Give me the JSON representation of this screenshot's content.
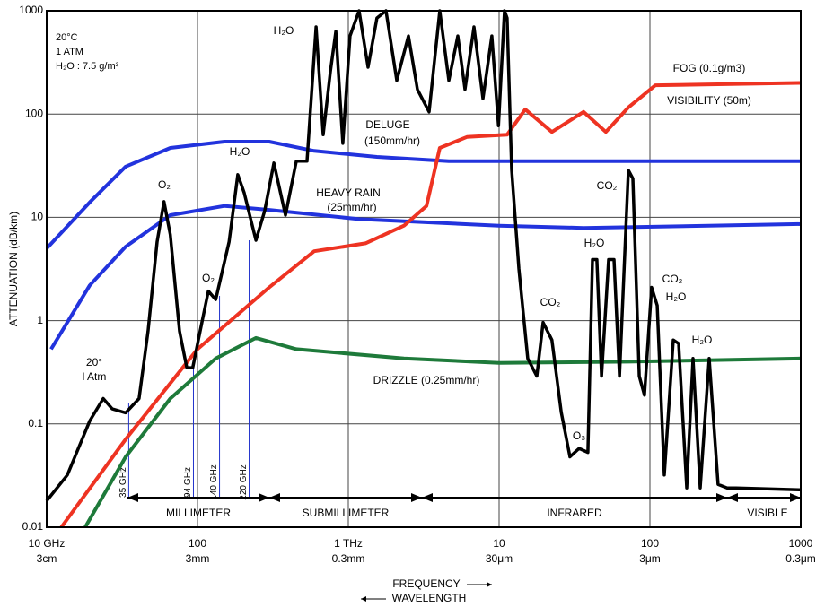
{
  "chart_data": {
    "type": "line",
    "y_label": "ATTENUATION (dB/km)",
    "x_caption_frequency": "FREQUENCY",
    "x_caption_wavelength": "WAVELENGTH",
    "log_x": true,
    "log_y": true,
    "grid": true,
    "xlim": [
      10,
      1000000
    ],
    "ylim": [
      0.01,
      1000
    ],
    "xticks": [
      {
        "value": 10,
        "label": "10 GHz",
        "wavelength": "3cm"
      },
      {
        "value": 100,
        "label": "100",
        "wavelength": "3mm"
      },
      {
        "value": 1000,
        "label": "1 THz",
        "wavelength": "0.3mm"
      },
      {
        "value": 10000,
        "label": "10",
        "wavelength": "30μm"
      },
      {
        "value": 100000,
        "label": "100",
        "wavelength": "3μm"
      },
      {
        "value": 1000000,
        "label": "1000",
        "wavelength": "0.3μm"
      }
    ],
    "yticks": [
      0.01,
      0.1,
      1,
      10,
      100,
      1000
    ],
    "markers": [
      {
        "value": 35,
        "label": "35 GHz"
      },
      {
        "value": 94,
        "label": "94 GHz"
      },
      {
        "value": 140,
        "label": "140 GHz"
      },
      {
        "value": 220,
        "label": "220 GHz"
      }
    ],
    "marker_color": "#2233cc",
    "bands": [
      "MILLIMETER",
      "SUBMILLIMETER",
      "INFRARED",
      "VISIBLE"
    ],
    "annotations": [
      "20°C",
      "1 ATM",
      "H₂O : 7.5 g/m³",
      "H₂O",
      "DELUGE",
      "(150mm/hr)",
      "HEAVY RAIN",
      "(25mm/hr)",
      "O₂",
      "H₂O",
      "O₂",
      "20°",
      "l Atm",
      "FOG (0.1g/m3)",
      "VISIBILITY (50m)",
      "DRIZZLE (0.25mm/hr)",
      "CO₂",
      "O₃",
      "H₂O",
      "CO₂",
      "CO₂",
      "H₂O",
      "H₂O"
    ],
    "series": [
      {
        "color": "#2233dd",
        "x": [
          10,
          19.3,
          33.4,
          66,
          151,
          299,
          594,
          1549,
          4642,
          18000,
          1000000
        ],
        "values": [
          5,
          14,
          31,
          47,
          54,
          54,
          44,
          38.5,
          35,
          35,
          35
        ]
      },
      {
        "color": "#2233dd",
        "x": [
          10.7,
          19.3,
          33.4,
          66,
          151,
          299,
          1178,
          10000,
          36300,
          1000000
        ],
        "values": [
          0.53,
          2.2,
          5.2,
          10.5,
          12.9,
          11.8,
          9.6,
          8.3,
          7.9,
          8.6
        ]
      },
      {
        "color": "#1e7a3a",
        "x": [
          18,
          33.4,
          66,
          132,
          244,
          452,
          2340,
          10000,
          72000,
          1000000
        ],
        "values": [
          0.01,
          0.048,
          0.176,
          0.43,
          0.68,
          0.53,
          0.43,
          0.39,
          0.4,
          0.43
        ]
      },
      {
        "color": "#ee3322",
        "x": [
          12.5,
          33.4,
          100,
          299,
          594,
          1300,
          2340,
          3300,
          4040,
          6110,
          11300,
          14900,
          22400,
          36300,
          51000,
          72000,
          108700,
          1000000
        ],
        "values": [
          0.01,
          0.071,
          0.53,
          2.1,
          4.7,
          5.6,
          8.3,
          12.9,
          47,
          60,
          63,
          111,
          67,
          105,
          67,
          116,
          190,
          200
        ]
      },
      {
        "color": "#000000",
        "x": [
          10,
          13.7,
          19.3,
          23.7,
          27.2,
          33.4,
          41,
          47,
          54,
          60,
          66,
          76,
          85,
          93,
          107,
          118,
          132,
          162,
          185,
          204,
          244,
          279,
          321,
          383,
          452,
          532,
          611,
          681,
          760,
          826,
          920,
          1027,
          1178,
          1352,
          1549,
          1778,
          2095,
          2506,
          2872,
          3434,
          4040,
          4642,
          5321,
          5943,
          6812,
          7813,
          8953,
          9900,
          10860,
          11300,
          12110,
          13520,
          15490,
          17780,
          19580,
          22400,
          25800,
          29500,
          33900,
          38800,
          41600,
          44500,
          47800,
          53200,
          57800,
          62800,
          72000,
          77100,
          84900,
          92000,
          102700,
          111700,
          124500,
          142900,
          155000,
          175300,
          193000,
          215500,
          247000,
          283000,
          325000,
          372000,
          1000000
        ],
        "values": [
          0.018,
          0.032,
          0.107,
          0.176,
          0.14,
          0.128,
          0.176,
          0.79,
          5.8,
          14.2,
          6.8,
          0.79,
          0.35,
          0.35,
          0.96,
          1.93,
          1.6,
          5.8,
          25.9,
          17.3,
          6,
          11.6,
          33.6,
          10.5,
          35,
          35,
          698,
          63,
          257,
          631,
          52,
          570,
          1000,
          284,
          850,
          1000,
          211,
          570,
          173,
          105,
          1000,
          211,
          570,
          173,
          698,
          141,
          570,
          77,
          1000,
          850,
          28.6,
          3.2,
          0.43,
          0.29,
          0.96,
          0.65,
          0.13,
          0.048,
          0.058,
          0.053,
          3.9,
          3.9,
          0.29,
          3.9,
          3.9,
          0.29,
          28.6,
          23.7,
          0.29,
          0.19,
          2.1,
          1.4,
          0.032,
          0.65,
          0.6,
          0.024,
          0.43,
          0.024,
          0.43,
          0.026,
          0.024,
          0.024,
          0.023
        ]
      }
    ]
  }
}
